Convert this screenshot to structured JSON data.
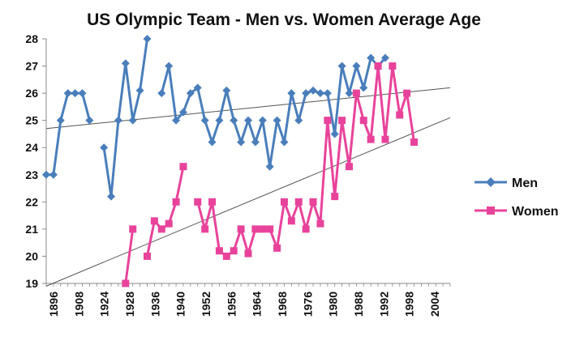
{
  "chart_data": {
    "type": "line",
    "title": "US Olympic Team - Men vs. Women Average Age",
    "xlabel": "",
    "ylabel": "",
    "ylim": [
      19,
      28
    ],
    "xlim": [
      1896,
      2008
    ],
    "x_ticks": [
      "1896",
      "1908",
      "1924",
      "1928",
      "1936",
      "1940",
      "1952",
      "1956",
      "1964",
      "1968",
      "1976",
      "1980",
      "1988",
      "1992",
      "1998",
      "2004"
    ],
    "y_ticks": [
      19,
      20,
      21,
      22,
      23,
      24,
      25,
      26,
      27,
      28
    ],
    "legend_position": "right",
    "grid": false,
    "colors": {
      "men": "#4a7ebb",
      "women": "#e8439b",
      "trend": "#555555"
    },
    "series": [
      {
        "name": "Men",
        "marker": "diamond",
        "segments": [
          [
            [
              1896,
              23.0
            ],
            [
              1898,
              23.0
            ],
            [
              1900,
              25.0
            ],
            [
              1902,
              26.0
            ],
            [
              1904,
              26.0
            ],
            [
              1906,
              26.0
            ],
            [
              1908,
              25.0
            ]
          ],
          [
            [
              1912,
              24.0
            ],
            [
              1914,
              22.2
            ],
            [
              1916,
              25.0
            ],
            [
              1918,
              27.1
            ],
            [
              1920,
              25.0
            ],
            [
              1922,
              26.1
            ],
            [
              1924,
              28.0
            ]
          ],
          [
            [
              1928,
              26.0
            ],
            [
              1930,
              27.0
            ],
            [
              1932,
              25.0
            ],
            [
              1934,
              25.3
            ],
            [
              1936,
              26.0
            ],
            [
              1938,
              26.2
            ],
            [
              1940,
              25.0
            ],
            [
              1942,
              24.2
            ],
            [
              1944,
              25.0
            ],
            [
              1946,
              26.1
            ],
            [
              1948,
              25.0
            ],
            [
              1950,
              24.2
            ],
            [
              1952,
              25.0
            ],
            [
              1954,
              24.2
            ],
            [
              1956,
              25.0
            ],
            [
              1958,
              23.3
            ],
            [
              1960,
              25.0
            ],
            [
              1962,
              24.2
            ],
            [
              1964,
              26.0
            ],
            [
              1966,
              25.0
            ],
            [
              1968,
              26.0
            ],
            [
              1970,
              26.1
            ],
            [
              1972,
              26.0
            ],
            [
              1974,
              26.0
            ],
            [
              1976,
              24.5
            ],
            [
              1978,
              27.0
            ],
            [
              1980,
              26.0
            ],
            [
              1982,
              27.0
            ],
            [
              1984,
              26.2
            ],
            [
              1986,
              27.3
            ],
            [
              1988,
              27.0
            ],
            [
              1990,
              27.3
            ]
          ]
        ]
      },
      {
        "name": "Women",
        "marker": "square",
        "segments": [
          [
            [
              1918,
              19.0
            ],
            [
              1920,
              21.0
            ]
          ],
          [
            [
              1924,
              20.0
            ],
            [
              1926,
              21.3
            ],
            [
              1928,
              21.0
            ],
            [
              1930,
              21.2
            ],
            [
              1932,
              22.0
            ],
            [
              1934,
              23.3
            ]
          ],
          [
            [
              1938,
              22.0
            ],
            [
              1940,
              21.0
            ],
            [
              1942,
              22.0
            ],
            [
              1944,
              20.2
            ],
            [
              1946,
              20.0
            ],
            [
              1948,
              20.2
            ],
            [
              1950,
              21.0
            ],
            [
              1952,
              20.1
            ],
            [
              1954,
              21.0
            ],
            [
              1956,
              21.0
            ],
            [
              1958,
              21.0
            ],
            [
              1960,
              20.3
            ],
            [
              1962,
              22.0
            ],
            [
              1964,
              21.3
            ],
            [
              1966,
              22.0
            ],
            [
              1968,
              21.0
            ],
            [
              1970,
              22.0
            ],
            [
              1972,
              21.2
            ],
            [
              1974,
              25.0
            ],
            [
              1976,
              22.2
            ],
            [
              1978,
              25.0
            ],
            [
              1980,
              23.3
            ],
            [
              1982,
              26.0
            ],
            [
              1984,
              25.0
            ],
            [
              1986,
              24.3
            ],
            [
              1988,
              27.0
            ],
            [
              1990,
              24.3
            ],
            [
              1992,
              27.0
            ],
            [
              1994,
              25.2
            ],
            [
              1996,
              26.0
            ],
            [
              1998,
              24.2
            ]
          ]
        ]
      }
    ],
    "trendlines": [
      {
        "series": "Men",
        "points": [
          [
            1896,
            24.7
          ],
          [
            2008,
            26.2
          ]
        ]
      },
      {
        "series": "Women",
        "points": [
          [
            1896,
            18.9
          ],
          [
            2008,
            25.1
          ]
        ]
      }
    ]
  }
}
